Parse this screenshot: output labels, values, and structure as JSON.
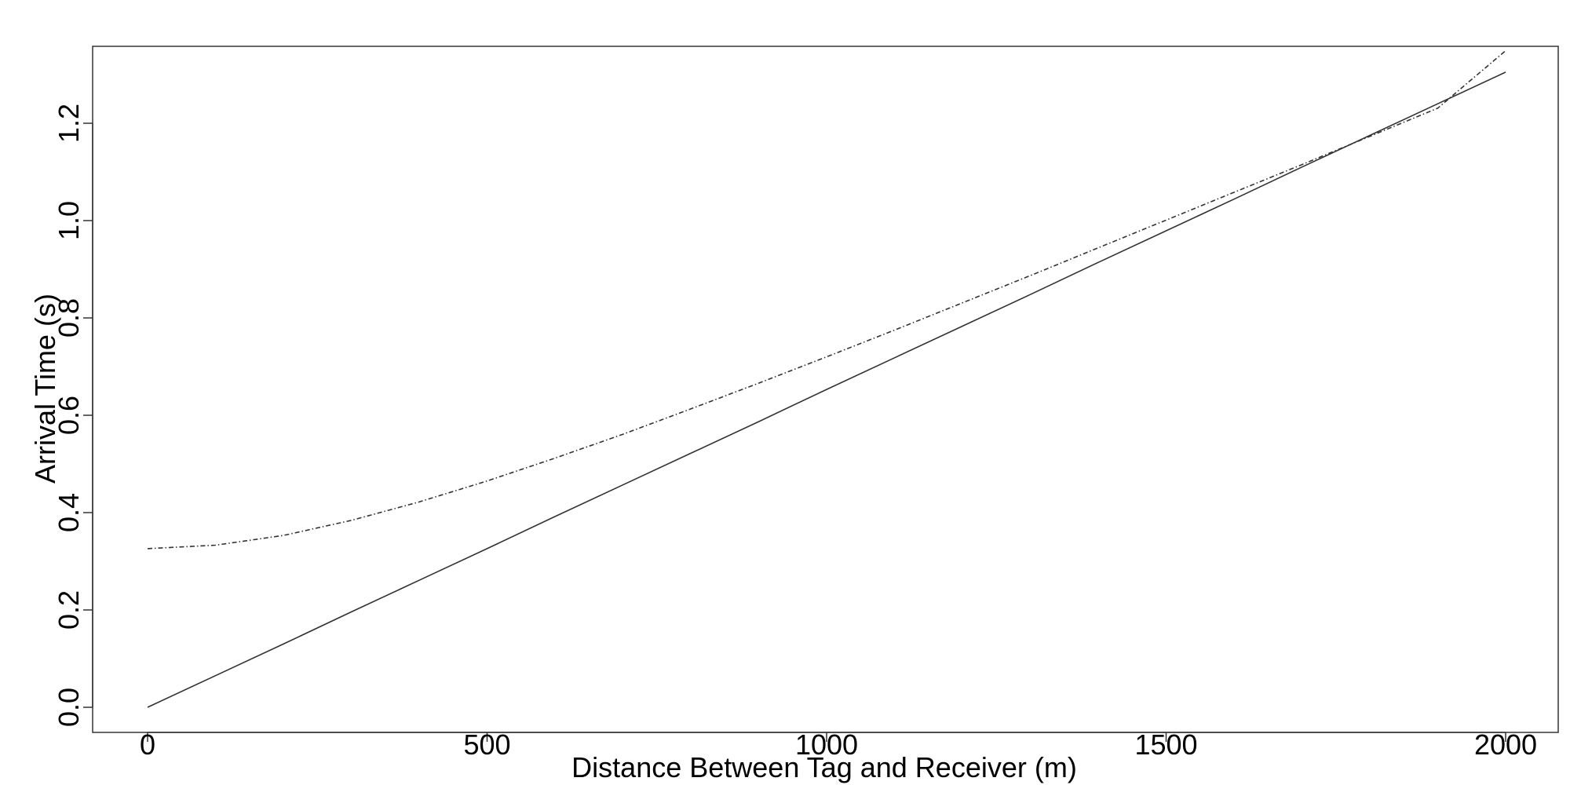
{
  "chart_data": {
    "type": "line",
    "title": "",
    "xlabel": "Distance Between Tag and Receiver (m)",
    "ylabel": "Arrival Time (s)",
    "xlim": [
      0,
      2000
    ],
    "ylim": [
      0,
      1.35
    ],
    "x_ticks": [
      0,
      500,
      1000,
      1500,
      2000
    ],
    "x_tick_labels": [
      "0",
      "500",
      "1000",
      "1500",
      "2000"
    ],
    "y_ticks": [
      0.0,
      0.2,
      0.4,
      0.6,
      0.8,
      1.0,
      1.2
    ],
    "y_tick_labels": [
      "0.0",
      "0.2",
      "0.4",
      "0.6",
      "0.8",
      "1.0",
      "1.2"
    ],
    "grid": false,
    "legend": "none",
    "x": [
      0,
      100,
      200,
      300,
      400,
      500,
      600,
      700,
      800,
      900,
      1000,
      1100,
      1200,
      1300,
      1400,
      1500,
      1600,
      1700,
      1800,
      1900,
      2000
    ],
    "series": [
      {
        "style": "solid",
        "color": "#333333",
        "values": [
          0.0,
          0.065,
          0.13,
          0.196,
          0.261,
          0.326,
          0.392,
          0.457,
          0.522,
          0.587,
          0.653,
          0.718,
          0.783,
          0.848,
          0.914,
          0.979,
          1.044,
          1.11,
          1.175,
          1.24,
          1.305
        ]
      },
      {
        "style": "dash-dot",
        "color": "#333333",
        "values": [
          0.326,
          0.333,
          0.353,
          0.384,
          0.422,
          0.465,
          0.512,
          0.561,
          0.613,
          0.666,
          0.72,
          0.775,
          0.831,
          0.887,
          0.944,
          1.001,
          1.058,
          1.115,
          1.173,
          1.231,
          1.349
        ]
      }
    ]
  }
}
